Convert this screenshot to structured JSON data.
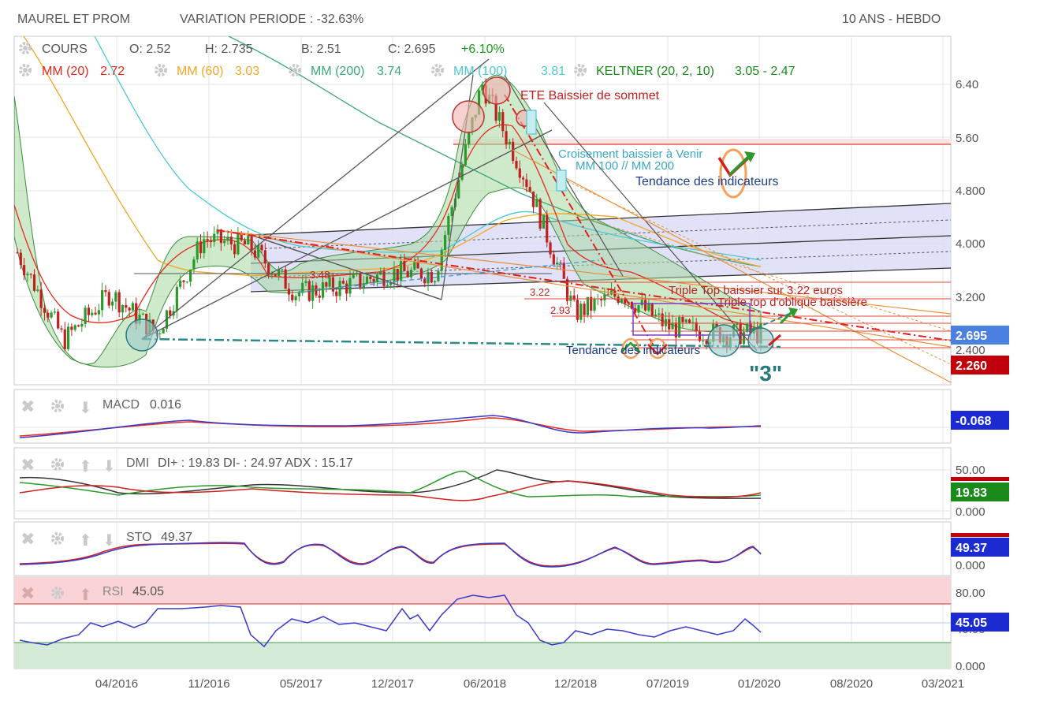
{
  "header": {
    "title": "MAUREL ET PROM",
    "variation": "VARIATION PERIODE : -32.63%",
    "period": "10 ANS - HEBDO"
  },
  "legend": {
    "cours": {
      "name": "COURS",
      "o": "O: 2.52",
      "h": "H: 2.735",
      "b": "B: 2.51",
      "c": "C: 2.695",
      "chg": "+6.10%"
    },
    "mm20": {
      "name": "MM (20)",
      "value": "2.72",
      "color": "#e8291c"
    },
    "mm60": {
      "name": "MM (60)",
      "value": "3.03",
      "color": "#f5a623"
    },
    "mm200": {
      "name": "MM (200)",
      "value": "3.74",
      "color": "#3aa776"
    },
    "mm100": {
      "name": "MM (100)",
      "value": "3.81",
      "color": "#4cc9d6"
    },
    "keltner": {
      "name": "KELTNER (20, 2, 10)",
      "value": "3.05 - 2.47",
      "color": "#1a8a1a"
    }
  },
  "price_axis": {
    "ticks": [
      "6.40",
      "5.60",
      "4.800",
      "4.000",
      "3.200",
      "2.400"
    ]
  },
  "badges": {
    "last_price": "2.695",
    "support": "2.260",
    "macd": "-0.068",
    "dmi": "19.83",
    "sto": "49.37",
    "rsi": "45.05"
  },
  "annotations": {
    "ete": "ETE Baissier de sommet",
    "croisement1": "Croisement baissier à Venir",
    "croisement2": "MM 100 // MM 200",
    "tendance_top": "Tendance des indicateurs",
    "tendance_bottom": "Tendance des indicateurs",
    "triple_top": "Triple Top baissier sur 3.22 euros",
    "triple_oblique": "Triple top d'oblique baissière",
    "three": "\"3\"",
    "lvl_322": "3.22",
    "lvl_48": "3.48",
    "lvl_29": "2.93"
  },
  "macd": {
    "label": "MACD",
    "value": "0.016"
  },
  "dmi": {
    "label": "DMI",
    "text": "DI+ : 19.83 DI- : 24.97 ADX : 15.17",
    "ticks": [
      "50.00",
      "0.000"
    ]
  },
  "sto": {
    "label": "STO",
    "value": "49.37",
    "ticks": [
      "0.000"
    ]
  },
  "rsi": {
    "label": "RSI",
    "value": "45.05",
    "ticks": [
      "80.00",
      "40.00",
      "0.000"
    ]
  },
  "x_axis": {
    "ticks": [
      "04/2016",
      "11/2016",
      "05/2017",
      "12/2017",
      "06/2018",
      "12/2018",
      "07/2019",
      "01/2020",
      "08/2020",
      "03/2021"
    ]
  },
  "chart_data": {
    "type": "line",
    "title": "MAUREL ET PROM",
    "xlabel": "",
    "ylabel": "",
    "x": [
      "2015-10",
      "2016-01",
      "2016-04",
      "2016-07",
      "2016-11",
      "2017-02",
      "2017-05",
      "2017-08",
      "2017-12",
      "2018-03",
      "2018-06",
      "2018-09",
      "2018-12",
      "2019-03",
      "2019-07",
      "2019-10",
      "2020-01"
    ],
    "ylim": [
      2.0,
      6.8
    ],
    "series": [
      {
        "name": "COURS",
        "values": [
          3.9,
          2.6,
          3.3,
          2.7,
          4.1,
          4.0,
          3.3,
          3.4,
          3.6,
          3.6,
          6.4,
          4.9,
          3.0,
          3.3,
          2.8,
          2.7,
          2.695
        ]
      },
      {
        "name": "MM (20)",
        "values": [
          3.8,
          3.0,
          2.9,
          3.1,
          3.9,
          3.9,
          3.4,
          3.4,
          3.5,
          3.5,
          5.7,
          5.2,
          3.8,
          3.2,
          2.9,
          2.75,
          2.72
        ]
      },
      {
        "name": "MM (60)",
        "values": [
          6.5,
          4.8,
          3.6,
          3.0,
          3.6,
          3.8,
          3.6,
          3.5,
          3.5,
          3.6,
          4.2,
          4.5,
          4.0,
          3.4,
          3.1,
          3.05,
          3.03
        ]
      },
      {
        "name": "MM (200)",
        "values": [
          6.8,
          6.8,
          6.6,
          6.3,
          5.9,
          5.6,
          5.3,
          5.1,
          4.9,
          4.7,
          4.7,
          4.6,
          4.4,
          4.1,
          3.9,
          3.8,
          3.74
        ]
      },
      {
        "name": "MM (100)",
        "values": [
          6.8,
          6.6,
          5.6,
          4.5,
          4.1,
          4.0,
          3.7,
          3.6,
          3.6,
          3.6,
          4.3,
          4.7,
          4.4,
          3.9,
          3.85,
          3.82,
          3.81
        ]
      }
    ],
    "grid": true,
    "legend": "top-left"
  }
}
